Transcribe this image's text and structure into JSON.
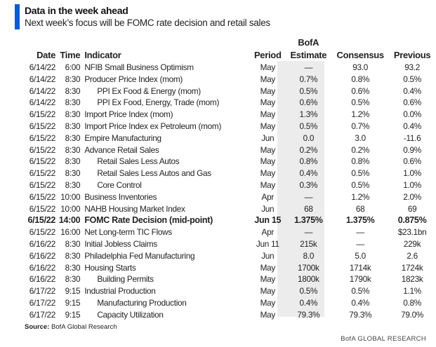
{
  "header": {
    "title": "Data in the week ahead",
    "subtitle": "Next week’s focus will be FOMC rate decision and retail sales",
    "accent": "#0b5bd3"
  },
  "columns": {
    "date": "Date",
    "time": "Time",
    "indicator": "Indicator",
    "period": "Period",
    "estimate_top": "BofA",
    "estimate": "Estimate",
    "consensus": "Consensus",
    "previous": "Previous"
  },
  "rows": [
    {
      "date": "6/14/22",
      "time": "6:00",
      "indicator": "NFIB Small Business Optimism",
      "indent": false,
      "period": "May",
      "estimate": "—",
      "consensus": "93.0",
      "previous": "93.2"
    },
    {
      "date": "6/14/22",
      "time": "8:30",
      "indicator": "Producer Price Index (mom)",
      "indent": false,
      "period": "May",
      "estimate": "0.7%",
      "consensus": "0.8%",
      "previous": "0.5%"
    },
    {
      "date": "6/14/22",
      "time": "8:30",
      "indicator": "PPI Ex Food & Energy (mom)",
      "indent": true,
      "period": "May",
      "estimate": "0.5%",
      "consensus": "0.6%",
      "previous": "0.4%"
    },
    {
      "date": "6/14/22",
      "time": "8:30",
      "indicator": "PPI Ex Food, Energy, Trade (mom)",
      "indent": true,
      "period": "May",
      "estimate": "0.6%",
      "consensus": "0.5%",
      "previous": "0.6%"
    },
    {
      "date": "6/15/22",
      "time": "8:30",
      "indicator": "Import Price Index (mom)",
      "indent": false,
      "period": "May",
      "estimate": "1.3%",
      "consensus": "1.2%",
      "previous": "0.0%"
    },
    {
      "date": "6/15/22",
      "time": "8:30",
      "indicator": "Import Price Index ex Petroleum (mom)",
      "indent": false,
      "period": "May",
      "estimate": "0.5%",
      "consensus": "0.7%",
      "previous": "0.4%"
    },
    {
      "date": "6/15/22",
      "time": "8:30",
      "indicator": "Empire Manufacturing",
      "indent": false,
      "period": "Jun",
      "estimate": "0.0",
      "consensus": "3.0",
      "previous": "-11.6"
    },
    {
      "date": "6/15/22",
      "time": "8:30",
      "indicator": "Advance Retail Sales",
      "indent": false,
      "period": "May",
      "estimate": "0.2%",
      "consensus": "0.2%",
      "previous": "0.9%"
    },
    {
      "date": "6/15/22",
      "time": "8:30",
      "indicator": "Retail Sales Less Autos",
      "indent": true,
      "period": "May",
      "estimate": "0.8%",
      "consensus": "0.8%",
      "previous": "0.6%"
    },
    {
      "date": "6/15/22",
      "time": "8:30",
      "indicator": "Retail Sales Less Autos and Gas",
      "indent": true,
      "period": "May",
      "estimate": "0.4%",
      "consensus": "0.5%",
      "previous": "1.0%"
    },
    {
      "date": "6/15/22",
      "time": "8:30",
      "indicator": "Core Control",
      "indent": true,
      "period": "May",
      "estimate": "0.3%",
      "consensus": "0.5%",
      "previous": "1.0%"
    },
    {
      "date": "6/15/22",
      "time": "10:00",
      "indicator": "Business Inventories",
      "indent": false,
      "period": "Apr",
      "estimate": "—",
      "consensus": "1.2%",
      "previous": "2.0%"
    },
    {
      "date": "6/15/22",
      "time": "10:00",
      "indicator": "NAHB Housing Market Index",
      "indent": false,
      "period": "Jun",
      "estimate": "68",
      "consensus": "68",
      "previous": "69"
    },
    {
      "date": "6/15/22",
      "time": "14:00",
      "indicator": "FOMC Rate Decision (mid-point)",
      "indent": false,
      "bold": true,
      "period": "Jun 15",
      "estimate": "1.375%",
      "consensus": "1.375%",
      "previous": "0.875%"
    },
    {
      "date": "6/15/22",
      "time": "16:00",
      "indicator": "Net Long-term TIC Flows",
      "indent": false,
      "period": "Apr",
      "estimate": "—",
      "consensus": "—",
      "previous": "$23.1bn"
    },
    {
      "date": "6/16/22",
      "time": "8:30",
      "indicator": "Initial Jobless Claims",
      "indent": false,
      "period": "Jun 11",
      "estimate": "215k",
      "consensus": "—",
      "previous": "229k"
    },
    {
      "date": "6/16/22",
      "time": "8:30",
      "indicator": "Philadelphia Fed Manufacturing",
      "indent": false,
      "period": "Jun",
      "estimate": "8.0",
      "consensus": "5.0",
      "previous": "2.6"
    },
    {
      "date": "6/16/22",
      "time": "8:30",
      "indicator": "Housing Starts",
      "indent": false,
      "period": "May",
      "estimate": "1700k",
      "consensus": "1714k",
      "previous": "1724k"
    },
    {
      "date": "6/16/22",
      "time": "8:30",
      "indicator": "Building Permits",
      "indent": true,
      "period": "May",
      "estimate": "1800k",
      "consensus": "1790k",
      "previous": "1823k"
    },
    {
      "date": "6/17/22",
      "time": "9:15",
      "indicator": "Industrial Production",
      "indent": false,
      "period": "May",
      "estimate": "0.5%",
      "consensus": "0.5%",
      "previous": "1.1%"
    },
    {
      "date": "6/17/22",
      "time": "9:15",
      "indicator": "Manufacturing Production",
      "indent": true,
      "period": "May",
      "estimate": "0.4%",
      "consensus": "0.4%",
      "previous": "0.8%"
    },
    {
      "date": "6/17/22",
      "time": "9:15",
      "indicator": "Capacity Utilization",
      "indent": true,
      "period": "May",
      "estimate": "79.3%",
      "consensus": "79.3%",
      "previous": "79.0%"
    }
  ],
  "source": {
    "label": "Source:",
    "text": "BofA Global Research"
  },
  "footer": "BofA GLOBAL RESEARCH"
}
